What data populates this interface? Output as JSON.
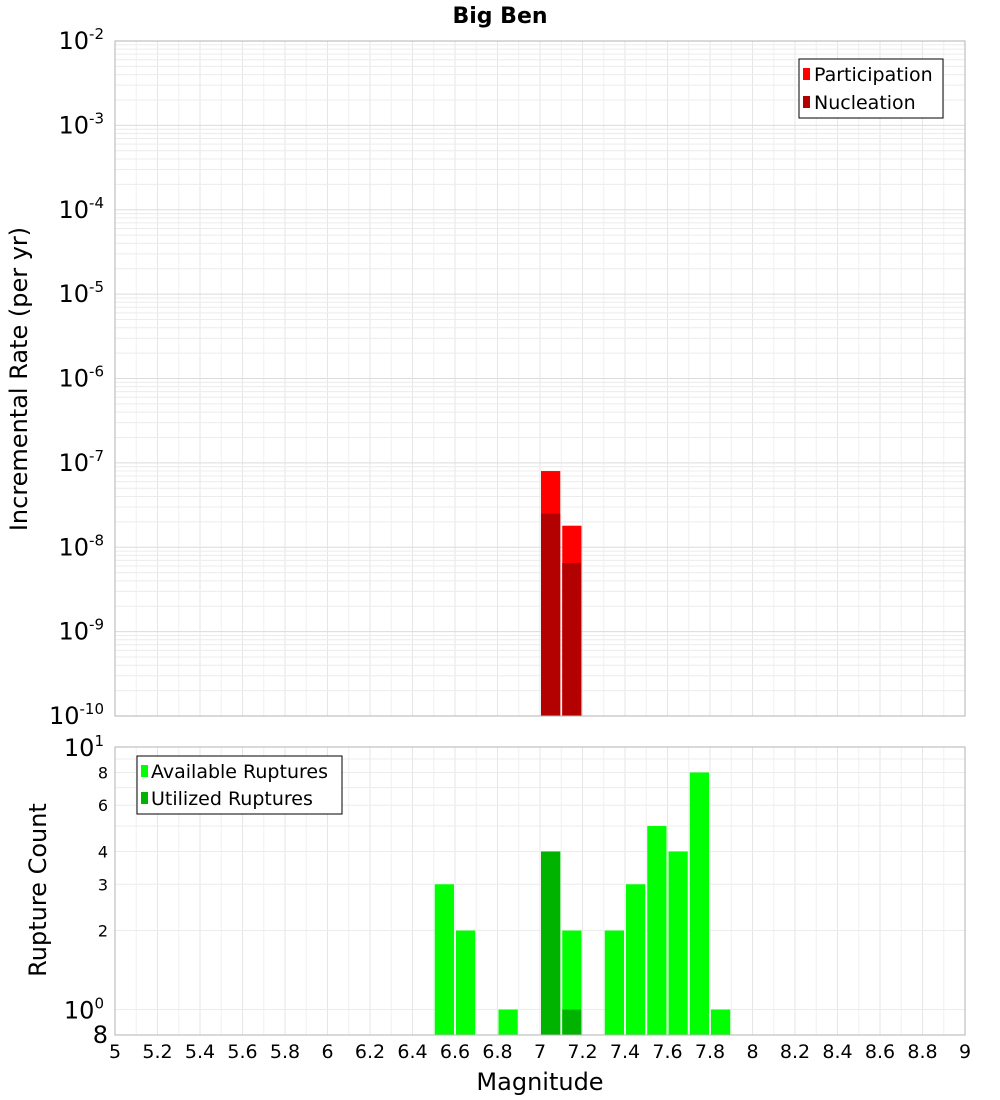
{
  "chart_data": [
    {
      "type": "bar",
      "title": "Big Ben",
      "ylabel": "Incremental Rate (per yr)",
      "xlabel": "",
      "y_scale": "log",
      "ylim": [
        1e-10,
        0.01
      ],
      "xlim": [
        5,
        9
      ],
      "bin_width": 0.1,
      "grid": true,
      "legend_position": "top-right",
      "y_ticks": [
        {
          "base": "10",
          "exp": "-10"
        },
        {
          "base": "10",
          "exp": "-9"
        },
        {
          "base": "10",
          "exp": "-8"
        },
        {
          "base": "10",
          "exp": "-7"
        },
        {
          "base": "10",
          "exp": "-6"
        },
        {
          "base": "10",
          "exp": "-5"
        },
        {
          "base": "10",
          "exp": "-4"
        },
        {
          "base": "10",
          "exp": "-3"
        },
        {
          "base": "10",
          "exp": "-2"
        }
      ],
      "series": [
        {
          "name": "Participation",
          "color": "#ff0000",
          "x": [
            7.05,
            7.15
          ],
          "values": [
            8e-08,
            1.8e-08
          ]
        },
        {
          "name": "Nucleation",
          "color": "#b30000",
          "x": [
            7.05,
            7.15
          ],
          "values": [
            2.5e-08,
            6.5e-09
          ]
        }
      ]
    },
    {
      "type": "bar",
      "ylabel": "Rupture Count",
      "xlabel": "Magnitude",
      "y_scale": "log",
      "ylim": [
        0.8,
        10
      ],
      "xlim": [
        5,
        9
      ],
      "bin_width": 0.1,
      "grid": true,
      "legend_position": "top-left",
      "y_ticks_major": [
        {
          "base": "10",
          "exp": "0"
        },
        {
          "base": "10",
          "exp": "1"
        }
      ],
      "y_ticks_minor": [
        "2",
        "3",
        "4",
        "6",
        "8"
      ],
      "y_bottom_label": "8",
      "x_ticks": [
        "5",
        "5.2",
        "5.4",
        "5.6",
        "5.8",
        "6",
        "6.2",
        "6.4",
        "6.6",
        "6.8",
        "7",
        "7.2",
        "7.4",
        "7.6",
        "7.8",
        "8",
        "8.2",
        "8.4",
        "8.6",
        "8.8",
        "9"
      ],
      "series": [
        {
          "name": "Available Ruptures",
          "color": "#00ff00",
          "x": [
            6.55,
            6.65,
            6.85,
            7.05,
            7.15,
            7.35,
            7.45,
            7.55,
            7.65,
            7.75,
            7.85
          ],
          "values": [
            3,
            2,
            1,
            4,
            2,
            2,
            3,
            5,
            4,
            8,
            1
          ]
        },
        {
          "name": "Utilized Ruptures",
          "color": "#00b300",
          "x": [
            7.05,
            7.15
          ],
          "values": [
            4,
            1
          ]
        }
      ]
    }
  ]
}
